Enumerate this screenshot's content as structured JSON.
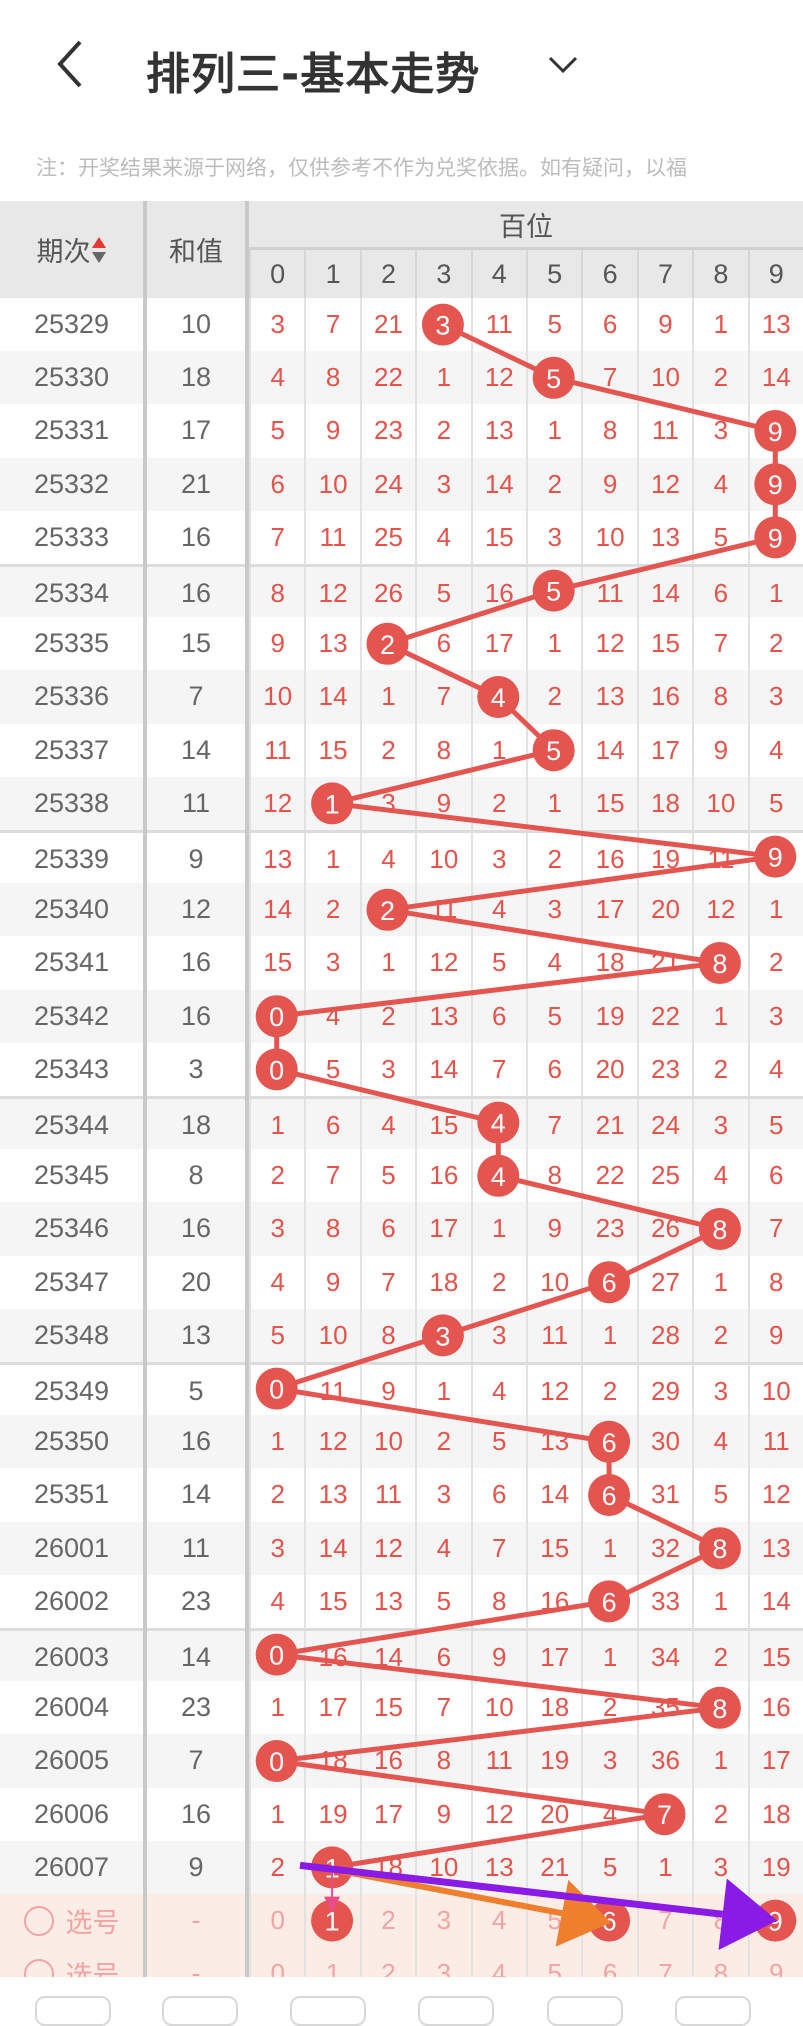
{
  "header": {
    "title": "排列三-基本走势",
    "back_icon": "chevron-left-icon",
    "dropdown_icon": "chevron-down-icon"
  },
  "note": "注：开奖结果来源于网络，仅供参考不作为兑奖依据。如有疑问，以福",
  "table": {
    "period_label": "期次",
    "sum_label": "和值",
    "group_label": "百位",
    "digits": [
      "0",
      "1",
      "2",
      "3",
      "4",
      "5",
      "6",
      "7",
      "8",
      "9"
    ]
  },
  "colors": {
    "accent": "#e5534b",
    "ball": "#e55550",
    "header_bg": "#e8e8e8",
    "select_bg": "#fcece6",
    "arrow_orange": "#ef7f2c",
    "arrow_purple": "#8a1ae6",
    "arrow_pink": "#ea4c89"
  },
  "rows": [
    {
      "period": "25329",
      "sum": "10",
      "hit": 3,
      "cells": [
        3,
        7,
        21,
        3,
        11,
        5,
        6,
        9,
        1,
        13
      ]
    },
    {
      "period": "25330",
      "sum": "18",
      "hit": 5,
      "cells": [
        4,
        8,
        22,
        1,
        12,
        5,
        7,
        10,
        2,
        14
      ]
    },
    {
      "period": "25331",
      "sum": "17",
      "hit": 9,
      "cells": [
        5,
        9,
        23,
        2,
        13,
        1,
        8,
        11,
        3,
        9
      ]
    },
    {
      "period": "25332",
      "sum": "21",
      "hit": 9,
      "cells": [
        6,
        10,
        24,
        3,
        14,
        2,
        9,
        12,
        4,
        9
      ]
    },
    {
      "period": "25333",
      "sum": "16",
      "hit": 9,
      "cells": [
        7,
        11,
        25,
        4,
        15,
        3,
        10,
        13,
        5,
        9
      ]
    },
    {
      "period": "25334",
      "sum": "16",
      "hit": 5,
      "cells": [
        8,
        12,
        26,
        5,
        16,
        5,
        11,
        14,
        6,
        1
      ]
    },
    {
      "period": "25335",
      "sum": "15",
      "hit": 2,
      "cells": [
        9,
        13,
        2,
        6,
        17,
        1,
        12,
        15,
        7,
        2
      ]
    },
    {
      "period": "25336",
      "sum": "7",
      "hit": 4,
      "cells": [
        10,
        14,
        1,
        7,
        4,
        2,
        13,
        16,
        8,
        3
      ]
    },
    {
      "period": "25337",
      "sum": "14",
      "hit": 5,
      "cells": [
        11,
        15,
        2,
        8,
        1,
        5,
        14,
        17,
        9,
        4
      ]
    },
    {
      "period": "25338",
      "sum": "11",
      "hit": 1,
      "cells": [
        12,
        1,
        3,
        9,
        2,
        1,
        15,
        18,
        10,
        5
      ]
    },
    {
      "period": "25339",
      "sum": "9",
      "hit": 9,
      "cells": [
        13,
        1,
        4,
        10,
        3,
        2,
        16,
        19,
        11,
        9
      ]
    },
    {
      "period": "25340",
      "sum": "12",
      "hit": 2,
      "cells": [
        14,
        2,
        2,
        11,
        4,
        3,
        17,
        20,
        12,
        1
      ]
    },
    {
      "period": "25341",
      "sum": "16",
      "hit": 8,
      "cells": [
        15,
        3,
        1,
        12,
        5,
        4,
        18,
        21,
        8,
        2
      ]
    },
    {
      "period": "25342",
      "sum": "16",
      "hit": 0,
      "cells": [
        0,
        4,
        2,
        13,
        6,
        5,
        19,
        22,
        1,
        3
      ]
    },
    {
      "period": "25343",
      "sum": "3",
      "hit": 0,
      "cells": [
        0,
        5,
        3,
        14,
        7,
        6,
        20,
        23,
        2,
        4
      ]
    },
    {
      "period": "25344",
      "sum": "18",
      "hit": 4,
      "cells": [
        1,
        6,
        4,
        15,
        4,
        7,
        21,
        24,
        3,
        5
      ]
    },
    {
      "period": "25345",
      "sum": "8",
      "hit": 4,
      "cells": [
        2,
        7,
        5,
        16,
        4,
        8,
        22,
        25,
        4,
        6
      ]
    },
    {
      "period": "25346",
      "sum": "16",
      "hit": 8,
      "cells": [
        3,
        8,
        6,
        17,
        1,
        9,
        23,
        26,
        8,
        7
      ]
    },
    {
      "period": "25347",
      "sum": "20",
      "hit": 6,
      "cells": [
        4,
        9,
        7,
        18,
        2,
        10,
        6,
        27,
        1,
        8
      ]
    },
    {
      "period": "25348",
      "sum": "13",
      "hit": 3,
      "cells": [
        5,
        10,
        8,
        3,
        3,
        11,
        1,
        28,
        2,
        9
      ]
    },
    {
      "period": "25349",
      "sum": "5",
      "hit": 0,
      "cells": [
        0,
        11,
        9,
        1,
        4,
        12,
        2,
        29,
        3,
        10
      ]
    },
    {
      "period": "25350",
      "sum": "16",
      "hit": 6,
      "cells": [
        1,
        12,
        10,
        2,
        5,
        13,
        6,
        30,
        4,
        11
      ]
    },
    {
      "period": "25351",
      "sum": "14",
      "hit": 6,
      "cells": [
        2,
        13,
        11,
        3,
        6,
        14,
        6,
        31,
        5,
        12
      ]
    },
    {
      "period": "26001",
      "sum": "11",
      "hit": 8,
      "cells": [
        3,
        14,
        12,
        4,
        7,
        15,
        1,
        32,
        8,
        13
      ]
    },
    {
      "period": "26002",
      "sum": "23",
      "hit": 6,
      "cells": [
        4,
        15,
        13,
        5,
        8,
        16,
        6,
        33,
        1,
        14
      ]
    },
    {
      "period": "26003",
      "sum": "14",
      "hit": 0,
      "cells": [
        0,
        16,
        14,
        6,
        9,
        17,
        1,
        34,
        2,
        15
      ]
    },
    {
      "period": "26004",
      "sum": "23",
      "hit": 8,
      "cells": [
        1,
        17,
        15,
        7,
        10,
        18,
        2,
        35,
        8,
        16
      ]
    },
    {
      "period": "26005",
      "sum": "7",
      "hit": 0,
      "cells": [
        0,
        18,
        16,
        8,
        11,
        19,
        3,
        36,
        1,
        17
      ]
    },
    {
      "period": "26006",
      "sum": "16",
      "hit": 7,
      "cells": [
        1,
        19,
        17,
        9,
        12,
        20,
        4,
        7,
        2,
        18
      ]
    },
    {
      "period": "26007",
      "sum": "9",
      "hit": 1,
      "cells": [
        2,
        1,
        18,
        10,
        13,
        21,
        5,
        1,
        3,
        19
      ]
    }
  ],
  "select_rows": [
    {
      "label": "选号",
      "sum": "-",
      "selected": [
        1,
        6,
        9
      ]
    },
    {
      "label": "选号",
      "sum": "-",
      "selected": []
    }
  ]
}
